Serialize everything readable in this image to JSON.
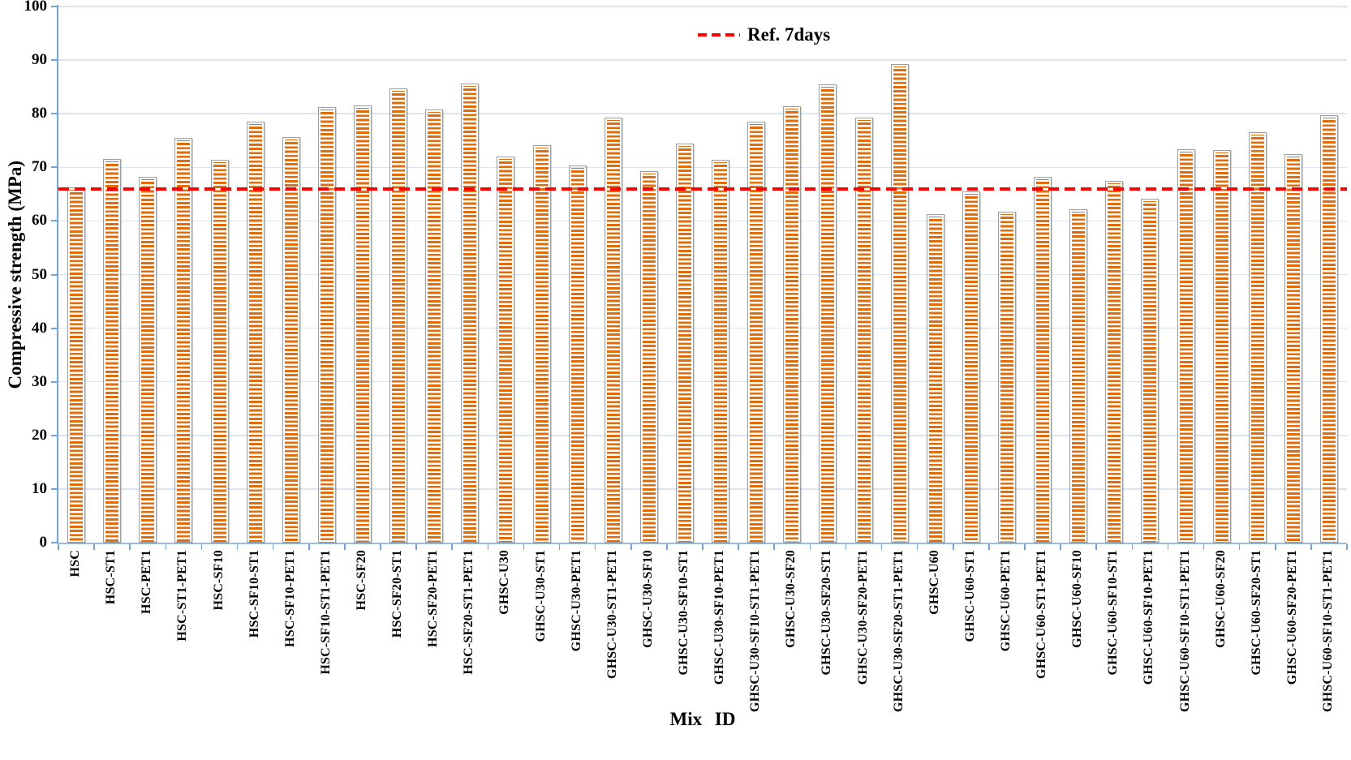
{
  "chart_data": {
    "type": "bar",
    "title": "",
    "xlabel": "Mix ID",
    "ylabel": "Compressive strength (MPa)",
    "ylim": [
      0,
      100
    ],
    "yticks": [
      0,
      10,
      20,
      30,
      40,
      50,
      60,
      70,
      80,
      90,
      100
    ],
    "grid": true,
    "legend_position": "top-center",
    "categories": [
      "HSC",
      "HSC-ST1",
      "HSC-PET1",
      "HSC-ST1-PET1",
      "HSC-SF10",
      "HSC-SF10-ST1",
      "HSC-SF10-PET1",
      "HSC-SF10-ST1-PET1",
      "HSC-SF20",
      "HSC-SF20-ST1",
      "HSC-SF20-PET1",
      "HSC-SF20-ST1-PET1",
      "GHSC-U30",
      "GHSC-U30-ST1",
      "GHSC-U30-PET1",
      "GHSC-U30-ST1-PET1",
      "GHSC-U30-SF10",
      "GHSC-U30-SF10-ST1",
      "GHSC-U30-SF10-PET1",
      "GHSC-U30-SF10-ST1-PET1",
      "GHSC-U30-SF20",
      "GHSC-U30-SF20-ST1",
      "GHSC-U30-SF20-PET1",
      "GHSC-U30-SF20-ST1-PET1",
      "GHSC-U60",
      "GHSC-U60-ST1",
      "GHSC-U60-PET1",
      "GHSC-U60-ST1-PET1",
      "GHSC-U60-SF10",
      "GHSC-U60-SF10-ST1",
      "GHSC-U60-SF10-PET1",
      "GHSC-U60-SF10-ST1-PET1",
      "GHSC-U60-SF20",
      "GHSC-U60-SF20-ST1",
      "GHSC-U60-SF20-PET1",
      "GHSC-U60-SF10-ST1-PET1"
    ],
    "values": [
      66.2,
      71.5,
      68.2,
      75.5,
      71.4,
      78.5,
      75.6,
      81.3,
      81.6,
      84.7,
      80.8,
      85.7,
      72.0,
      74.2,
      70.3,
      79.2,
      69.3,
      74.4,
      71.4,
      78.5,
      81.4,
      85.5,
      79.2,
      89.3,
      61.2,
      65.5,
      61.8,
      68.2,
      62.2,
      67.4,
      64.1,
      73.3,
      73.2,
      76.6,
      72.4,
      79.7
    ],
    "ref_line": {
      "label": "Ref. 7days",
      "value": 66,
      "color": "#FF0000",
      "style": "dashed"
    },
    "bar_style": {
      "pattern": "horizontal-stripes",
      "stripe_color": "#E36C0A",
      "background_color": "#FFFFFF",
      "border_color": "#9E9E9E"
    },
    "axis_color": "#74A3D6",
    "gridline_color": "#DCE4F0"
  }
}
